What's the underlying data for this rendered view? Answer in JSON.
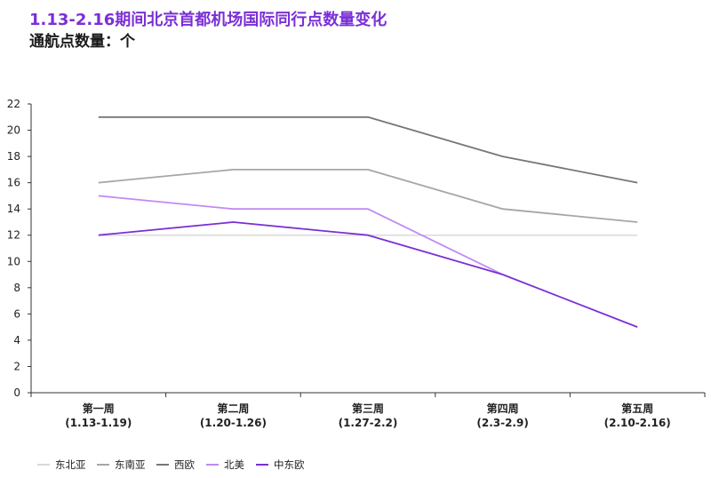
{
  "header": {
    "title": "1.13-2.16期间北京首都机场国际同行点数量变化",
    "subtitle": "通航点数量：个"
  },
  "chart_data": {
    "type": "line",
    "title": "1.13-2.16期间北京首都机场国际同行点数量变化",
    "ylabel": "通航点数量：个",
    "xlabel": "",
    "ylim": [
      0,
      22
    ],
    "yticks": [
      0,
      2,
      4,
      6,
      8,
      10,
      12,
      14,
      16,
      18,
      20,
      22
    ],
    "categories": [
      {
        "week": "第一周",
        "range": "(1.13-1.19)"
      },
      {
        "week": "第二周",
        "range": "(1.20-1.26)"
      },
      {
        "week": "第三周",
        "range": "(1.27-2.2)"
      },
      {
        "week": "第四周",
        "range": "(2.3-2.9)"
      },
      {
        "week": "第五周",
        "range": "(2.10-2.16)"
      }
    ],
    "series": [
      {
        "name": "东北亚",
        "color": "#d9d9d9",
        "values": [
          12,
          12,
          12,
          12,
          12
        ]
      },
      {
        "name": "东南亚",
        "color": "#a6a6a6",
        "values": [
          16,
          17,
          17,
          14,
          13
        ]
      },
      {
        "name": "西欧",
        "color": "#767676",
        "values": [
          21,
          21,
          21,
          18,
          16
        ]
      },
      {
        "name": "北美",
        "color": "#c08af2",
        "values": [
          15,
          14,
          14,
          9,
          null
        ]
      },
      {
        "name": "中东欧",
        "color": "#7b2fd6",
        "values": [
          12,
          13,
          12,
          9,
          5
        ]
      }
    ],
    "legend_position": "bottom-left",
    "grid": false
  }
}
